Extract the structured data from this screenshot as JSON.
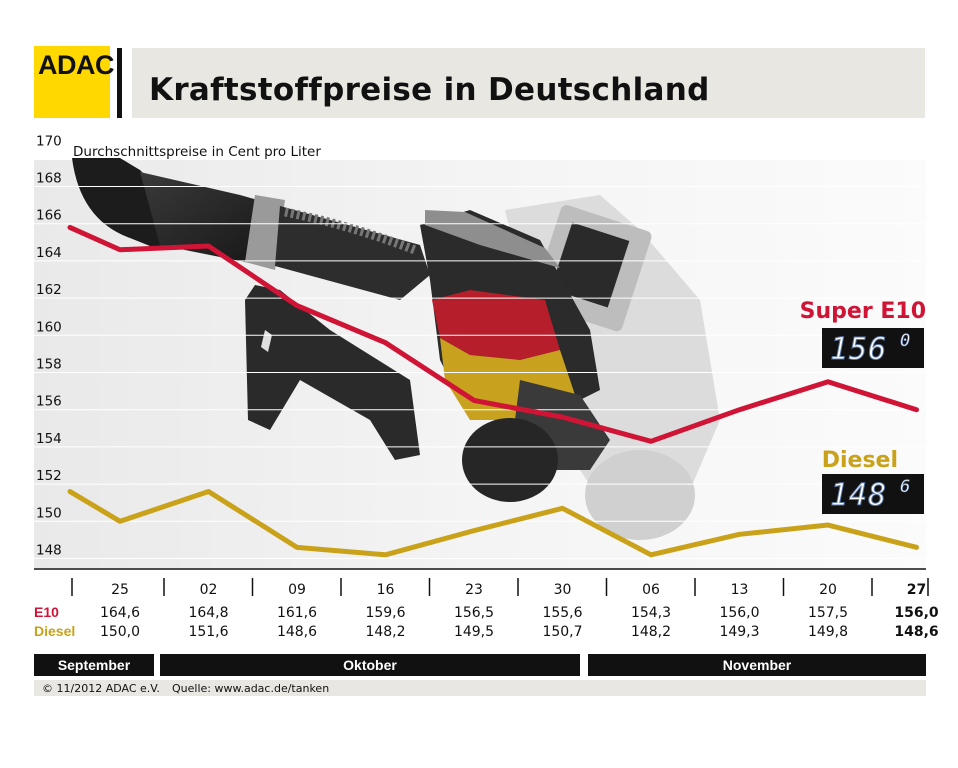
{
  "header": {
    "logo_text": "ADAC",
    "title": "Kraftstoffpreise in Deutschland"
  },
  "footer": {
    "copyright": "© 11/2012 ADAC e.V.",
    "source": "Quelle: www.adac.de/tanken"
  },
  "colors": {
    "e10": "#cf1436",
    "diesel": "#c9a21a",
    "logo": "#ffd800"
  },
  "chart_data": {
    "type": "line",
    "ylabel": "Durchschnittspreise in Cent pro Liter",
    "ylim": [
      147,
      170
    ],
    "y_ticks": [
      148,
      150,
      152,
      154,
      156,
      158,
      160,
      162,
      164,
      166,
      168,
      170
    ],
    "categories": [
      "25",
      "02",
      "09",
      "16",
      "23",
      "30",
      "06",
      "13",
      "20",
      "27"
    ],
    "row_labels": [
      "E10",
      "Diesel"
    ],
    "series": [
      {
        "name": "Super E10",
        "label": "E10",
        "color": "#cf1436",
        "values": [
          164.6,
          164.8,
          161.6,
          159.6,
          156.5,
          155.6,
          154.3,
          156.0,
          157.5,
          156.0
        ],
        "values_text": [
          "164,6",
          "164,8",
          "161,6",
          "159,6",
          "156,5",
          "155,6",
          "154,3",
          "156,0",
          "157,5",
          "156,0"
        ],
        "start_value": 165.8,
        "display_digits": "1560"
      },
      {
        "name": "Diesel",
        "label": "Diesel",
        "color": "#c9a21a",
        "values": [
          150.0,
          151.6,
          148.6,
          148.2,
          149.5,
          150.7,
          148.2,
          149.3,
          149.8,
          148.6
        ],
        "values_text": [
          "150,0",
          "151,6",
          "148,6",
          "148,2",
          "149,5",
          "150,7",
          "148,2",
          "149,3",
          "149,8",
          "148,6"
        ],
        "start_value": 151.6,
        "display_digits": "1486"
      }
    ],
    "months": [
      "September",
      "Oktober",
      "November"
    ],
    "grid": true
  }
}
